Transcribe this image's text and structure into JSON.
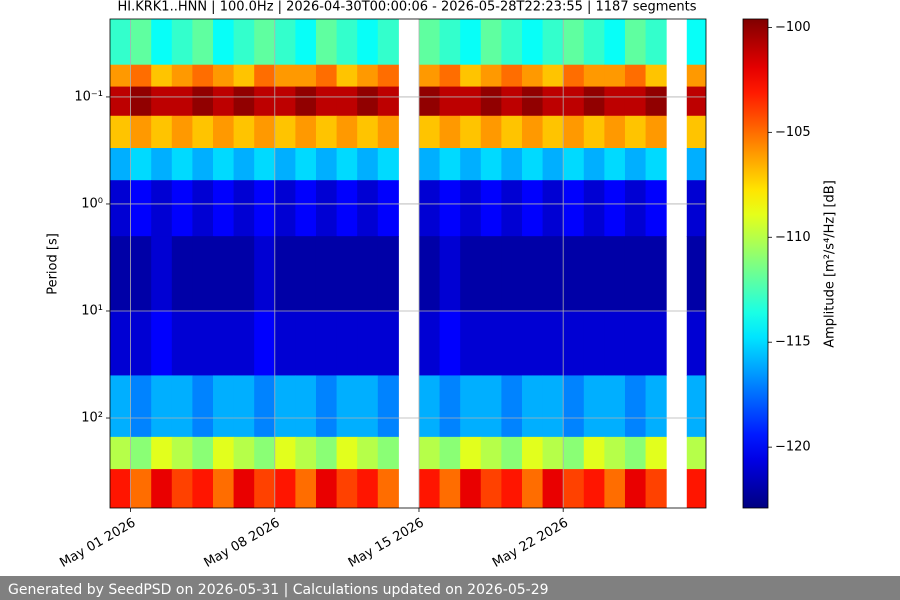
{
  "chart_data": {
    "type": "heatmap",
    "title": "HI.KRK1..HNN | 100.0Hz | 2026-04-30T00:00:06 - 2026-05-28T22:23:55 | 1187 segments",
    "ylabel": "Period [s]",
    "colorbar_label": "Amplitude [m²/s⁴/Hz] [dB]",
    "colormap": "jet",
    "grid": true,
    "ylog": true,
    "x": [
      "2026-04-30T00:00:00",
      "2026-05-01T00:00:00",
      "2026-05-02T00:00:00",
      "2026-05-03T00:00:00",
      "2026-05-04T00:00:00",
      "2026-05-05T00:00:00",
      "2026-05-06T00:00:00",
      "2026-05-07T00:00:00",
      "2026-05-08T00:00:00",
      "2026-05-09T00:00:00",
      "2026-05-10T00:00:00",
      "2026-05-11T00:00:00",
      "2026-05-12T00:00:00",
      "2026-05-13T00:00:00",
      "2026-05-14T00:00:00",
      "2026-05-15T00:00:00",
      "2026-05-16T00:00:00",
      "2026-05-17T00:00:00",
      "2026-05-18T00:00:00",
      "2026-05-19T00:00:00",
      "2026-05-20T00:00:00",
      "2026-05-21T00:00:00",
      "2026-05-22T00:00:00",
      "2026-05-23T00:00:00",
      "2026-05-24T00:00:00",
      "2026-05-25T00:00:00",
      "2026-05-26T00:00:00",
      "2026-05-27T00:00:00",
      "2026-05-28T00:00:00"
    ],
    "period_bins": [
      0.0187,
      0.05,
      0.08,
      0.15,
      0.3,
      0.6,
      2,
      10,
      40,
      150,
      300,
      693
    ],
    "z": [
      [
        -113,
        -112,
        -114,
        -113,
        -112,
        -114,
        -113,
        -112,
        -113,
        -114,
        -112,
        -113,
        -114,
        -113,
        null,
        -112,
        -113,
        -114,
        -112,
        -113,
        -114,
        -113,
        -112,
        -113,
        -114,
        -112,
        -113,
        null,
        -114
      ],
      [
        -106,
        -105,
        -107,
        -106,
        -105,
        -106,
        -107,
        -105,
        -106,
        -106,
        -105,
        -107,
        -106,
        -105,
        null,
        -106,
        -105,
        -107,
        -106,
        -105,
        -106,
        -107,
        -105,
        -106,
        -106,
        -105,
        -107,
        null,
        -106
      ],
      [
        -101,
        -100,
        -101,
        -101,
        -100,
        -101,
        -100,
        -101,
        -101,
        -100,
        -101,
        -101,
        -100,
        -101,
        null,
        -100,
        -101,
        -101,
        -100,
        -101,
        -100,
        -101,
        -101,
        -100,
        -101,
        -101,
        -100,
        null,
        -101
      ],
      [
        -107,
        -106,
        -107,
        -106,
        -107,
        -106,
        -107,
        -106,
        -107,
        -106,
        -107,
        -106,
        -107,
        -106,
        null,
        -107,
        -106,
        -107,
        -106,
        -107,
        -106,
        -107,
        -106,
        -107,
        -106,
        -107,
        -106,
        null,
        -107
      ],
      [
        -116,
        -115,
        -116,
        -115,
        -116,
        -115,
        -116,
        -115,
        -116,
        -115,
        -116,
        -115,
        -116,
        -115,
        null,
        -116,
        -115,
        -116,
        -115,
        -116,
        -115,
        -116,
        -115,
        -116,
        -115,
        -116,
        -115,
        null,
        -116
      ],
      [
        -121,
        -120,
        -121,
        -120,
        -121,
        -120,
        -121,
        -120,
        -121,
        -120,
        -121,
        -120,
        -121,
        -120,
        null,
        -121,
        -120,
        -121,
        -120,
        -121,
        -120,
        -121,
        -120,
        -121,
        -120,
        -121,
        -120,
        null,
        -121
      ],
      [
        -122,
        -122,
        -121,
        -122,
        -122,
        -122,
        -122,
        -121,
        -122,
        -122,
        -122,
        -122,
        -122,
        -122,
        null,
        -122,
        -121,
        -122,
        -122,
        -122,
        -122,
        -122,
        -122,
        -122,
        -122,
        -122,
        -122,
        null,
        -122
      ],
      [
        -121,
        -121,
        -120,
        -121,
        -121,
        -121,
        -121,
        -120,
        -121,
        -121,
        -121,
        -121,
        -121,
        -121,
        null,
        -121,
        -120,
        -121,
        -121,
        -121,
        -121,
        -121,
        -121,
        -121,
        -121,
        -121,
        -121,
        null,
        -121
      ],
      [
        -116,
        -117,
        -116,
        -116,
        -117,
        -116,
        -116,
        -117,
        -116,
        -116,
        -117,
        -116,
        -116,
        -117,
        null,
        -116,
        -117,
        -116,
        -116,
        -117,
        -116,
        -116,
        -117,
        -116,
        -116,
        -117,
        -116,
        null,
        -116
      ],
      [
        -110,
        -111,
        -109,
        -110,
        -111,
        -109,
        -110,
        -111,
        -109,
        -110,
        -111,
        -109,
        -110,
        -111,
        null,
        -110,
        -111,
        -109,
        -110,
        -111,
        -109,
        -110,
        -111,
        -109,
        -110,
        -111,
        -109,
        null,
        -110
      ],
      [
        -103,
        -105,
        -102,
        -104,
        -103,
        -105,
        -102,
        -104,
        -103,
        -105,
        -102,
        -104,
        -103,
        -105,
        null,
        -103,
        -105,
        -102,
        -104,
        -103,
        -105,
        -102,
        -104,
        -103,
        -105,
        -102,
        -104,
        null,
        -103
      ]
    ],
    "xlim": [
      "2026-04-30T00:00:06",
      "2026-05-28T22:23:55"
    ],
    "xticks": [
      {
        "value": "2026-05-01T00:00:00",
        "label": "May 01 2026"
      },
      {
        "value": "2026-05-08T00:00:00",
        "label": "May 08 2026"
      },
      {
        "value": "2026-05-15T00:00:00",
        "label": "May 15 2026"
      },
      {
        "value": "2026-05-22T00:00:00",
        "label": "May 22 2026"
      }
    ],
    "ylim": [
      0.0187,
      693
    ],
    "yticks": [
      {
        "value": 0.1,
        "label": "10⁻¹"
      },
      {
        "value": 1,
        "label": "10⁰"
      },
      {
        "value": 10,
        "label": "10¹"
      },
      {
        "value": 100,
        "label": "10²"
      }
    ],
    "clim": [
      -122.9,
      -99.6
    ],
    "colorbar_ticks": [
      {
        "value": -100,
        "label": "−100"
      },
      {
        "value": -105,
        "label": "−105"
      },
      {
        "value": -110,
        "label": "−110"
      },
      {
        "value": -115,
        "label": "−115"
      },
      {
        "value": -120,
        "label": "−120"
      }
    ]
  },
  "footer": "Generated by SeedPSD on 2026-05-31 | Calculations updated on 2026-05-29"
}
